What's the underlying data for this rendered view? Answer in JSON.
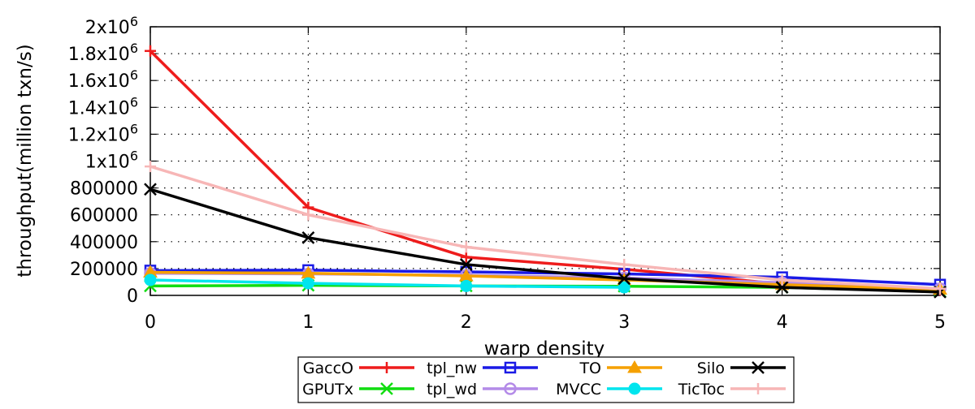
{
  "chart_data": {
    "type": "line",
    "xlabel": "warp density",
    "ylabel": "throughput(million txn/s)",
    "x": [
      0,
      1,
      2,
      3,
      4,
      5
    ],
    "xlim": [
      0,
      5
    ],
    "ylim": [
      0,
      2000000
    ],
    "grid": true,
    "legend_placement": "bottom",
    "y_ticks": [
      {
        "value": 0,
        "base": "0",
        "exp": ""
      },
      {
        "value": 200000,
        "base": "200000",
        "exp": ""
      },
      {
        "value": 400000,
        "base": "400000",
        "exp": ""
      },
      {
        "value": 600000,
        "base": "600000",
        "exp": ""
      },
      {
        "value": 800000,
        "base": "800000",
        "exp": ""
      },
      {
        "value": 1000000,
        "base": "1x10",
        "exp": "6"
      },
      {
        "value": 1200000,
        "base": "1.2x10",
        "exp": "6"
      },
      {
        "value": 1400000,
        "base": "1.4x10",
        "exp": "6"
      },
      {
        "value": 1600000,
        "base": "1.6x10",
        "exp": "6"
      },
      {
        "value": 1800000,
        "base": "1.8x10",
        "exp": "6"
      },
      {
        "value": 2000000,
        "base": "2x10",
        "exp": "6"
      }
    ],
    "x_ticks": [
      "0",
      "1",
      "2",
      "3",
      "4",
      "5"
    ],
    "series": [
      {
        "name": "GaccO",
        "color": "#ee1c1c",
        "marker": "plus",
        "values": [
          1820000,
          655000,
          285000,
          195000,
          85000,
          40000
        ]
      },
      {
        "name": "GPUTx",
        "color": "#11dd11",
        "marker": "x",
        "values": [
          70000,
          75000,
          70000,
          68000,
          60000,
          30000
        ]
      },
      {
        "name": "tpl_nw",
        "color": "#1a1ae6",
        "marker": "square",
        "values": [
          185000,
          188000,
          175000,
          160000,
          135000,
          80000
        ]
      },
      {
        "name": "tpl_wd",
        "color": "#b48be8",
        "marker": "circle",
        "values": [
          165000,
          160000,
          150000,
          130000,
          95000,
          50000
        ]
      },
      {
        "name": "TO",
        "color": "#f5a000",
        "marker": "triangle",
        "values": [
          172000,
          165000,
          145000,
          115000,
          80000,
          45000
        ]
      },
      {
        "name": "MVCC",
        "color": "#00e5ee",
        "marker": "filled-circle",
        "values": [
          115000,
          90000,
          70000,
          60000,
          0,
          0
        ]
      },
      {
        "name": "Silo",
        "color": "#000000",
        "marker": "x",
        "values": [
          790000,
          430000,
          230000,
          125000,
          60000,
          25000
        ]
      },
      {
        "name": "TicToc",
        "color": "#f7b6b6",
        "marker": "plus",
        "values": [
          960000,
          600000,
          360000,
          230000,
          115000,
          50000
        ]
      }
    ],
    "mvcc_points": 4
  }
}
